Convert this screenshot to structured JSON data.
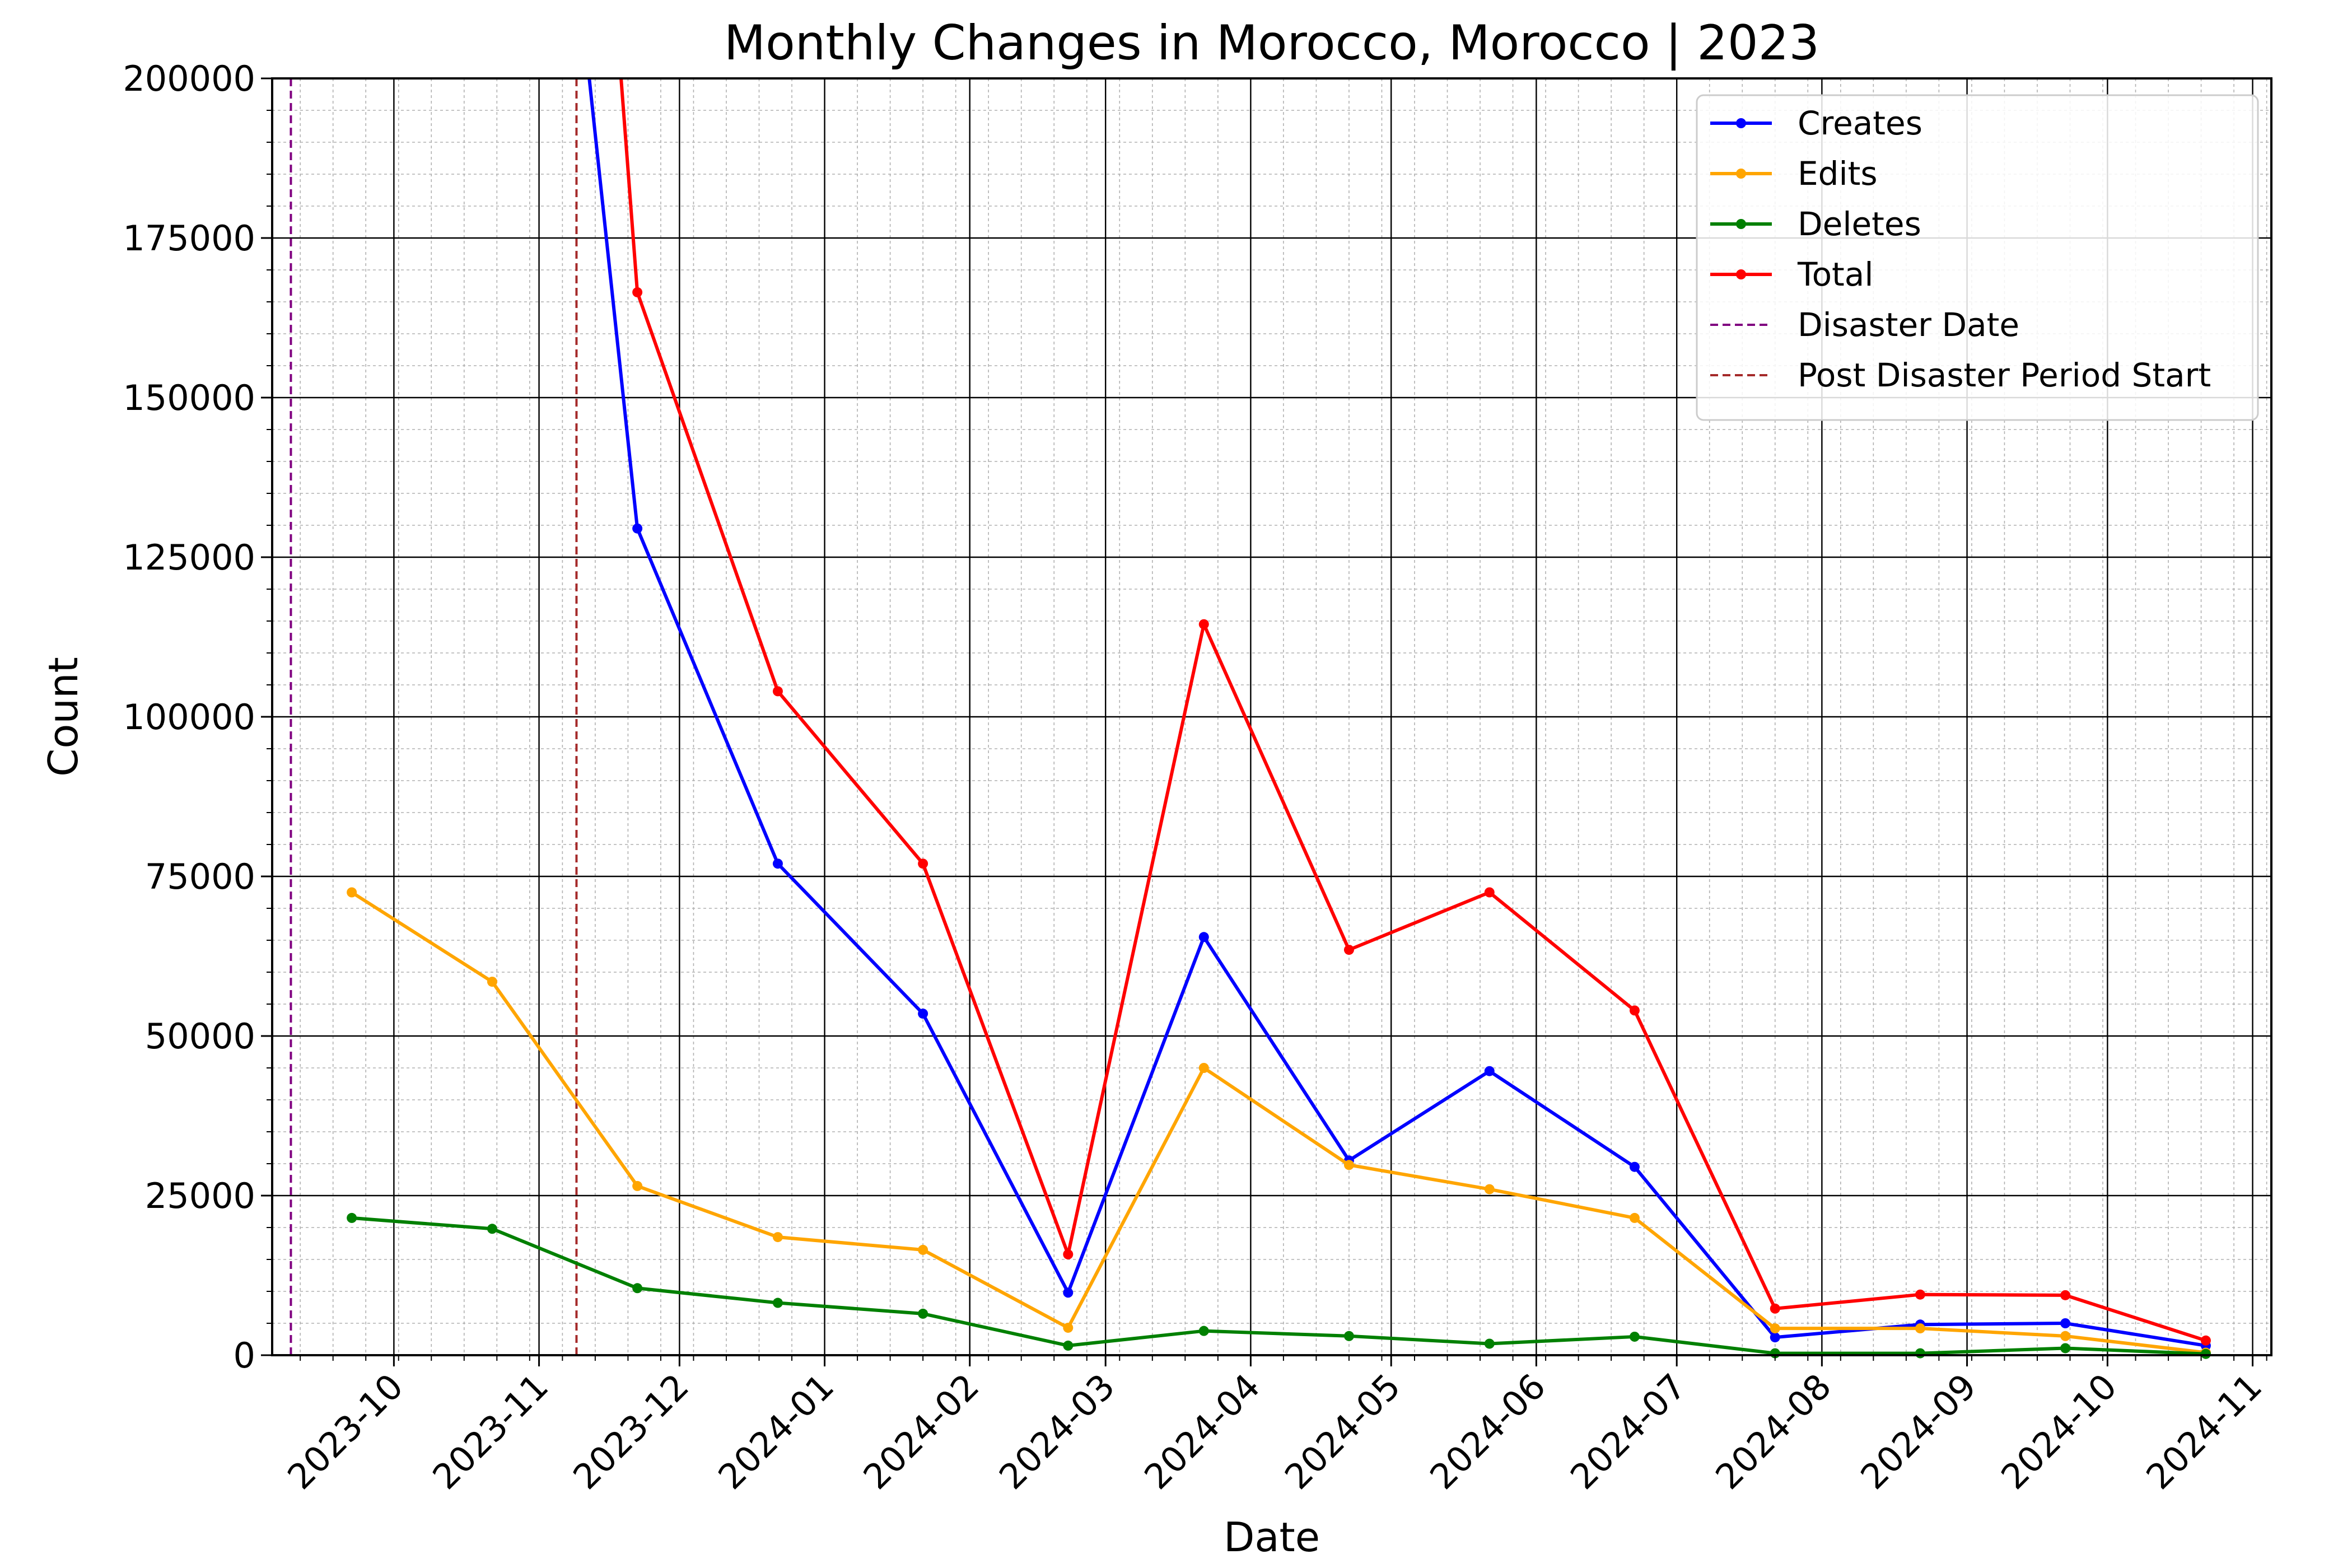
{
  "chart_data": {
    "type": "line",
    "title": "Monthly Changes in Morocco, Morocco | 2023",
    "xlabel": "Date",
    "ylabel": "Count",
    "ylim": [
      0,
      200000
    ],
    "xlim": [
      "2023-09-05",
      "2024-11-05"
    ],
    "y_ticks": [
      0,
      25000,
      50000,
      75000,
      100000,
      125000,
      150000,
      175000,
      200000
    ],
    "x_ticks": [
      {
        "date": "2023-10-01",
        "label": "2023-10"
      },
      {
        "date": "2023-11-01",
        "label": "2023-11"
      },
      {
        "date": "2023-12-01",
        "label": "2023-12"
      },
      {
        "date": "2024-01-01",
        "label": "2024-01"
      },
      {
        "date": "2024-02-01",
        "label": "2024-02"
      },
      {
        "date": "2024-03-01",
        "label": "2024-03"
      },
      {
        "date": "2024-04-01",
        "label": "2024-04"
      },
      {
        "date": "2024-05-01",
        "label": "2024-05"
      },
      {
        "date": "2024-06-01",
        "label": "2024-06"
      },
      {
        "date": "2024-07-01",
        "label": "2024-07"
      },
      {
        "date": "2024-08-01",
        "label": "2024-08"
      },
      {
        "date": "2024-09-01",
        "label": "2024-09"
      },
      {
        "date": "2024-10-01",
        "label": "2024-10"
      },
      {
        "date": "2024-11-01",
        "label": "2024-11"
      }
    ],
    "grid": true,
    "minor_grid": true,
    "legend_position": "top-right",
    "x": [
      "2023-09-22",
      "2023-10-22",
      "2023-11-22",
      "2023-12-22",
      "2024-01-22",
      "2024-02-22",
      "2024-03-22",
      "2024-04-22",
      "2024-05-22",
      "2024-06-22",
      "2024-07-22",
      "2024-08-22",
      "2024-09-22",
      "2024-10-22"
    ],
    "series": [
      {
        "name": "Creates",
        "color": "#0000ff",
        "values": [
          null,
          null,
          129500,
          77000,
          53500,
          9800,
          65500,
          30500,
          44500,
          29500,
          2800,
          4800,
          5000,
          1500
        ],
        "offscale_start": {
          "date": "2023-11-11",
          "value": 205000
        }
      },
      {
        "name": "Edits",
        "color": "#ffa500",
        "values": [
          72500,
          58500,
          26500,
          18500,
          16500,
          4300,
          45000,
          29800,
          26000,
          21500,
          4200,
          4200,
          3000,
          400
        ]
      },
      {
        "name": "Deletes",
        "color": "#008000",
        "values": [
          21500,
          19800,
          10500,
          8200,
          6500,
          1500,
          3800,
          3000,
          1800,
          2900,
          300,
          300,
          1100,
          200
        ]
      },
      {
        "name": "Total",
        "color": "#ff0000",
        "values": [
          null,
          null,
          166500,
          104000,
          77000,
          15800,
          114500,
          63500,
          72500,
          54000,
          7300,
          9500,
          9400,
          2300
        ],
        "offscale_start": {
          "date": "2023-11-18",
          "value": 205000
        }
      }
    ],
    "vlines": [
      {
        "name": "Disaster Date",
        "date": "2023-09-09",
        "color": "#800080"
      },
      {
        "name": "Post Disaster Period Start",
        "date": "2023-11-09",
        "color": "#a52a2a"
      }
    ]
  }
}
